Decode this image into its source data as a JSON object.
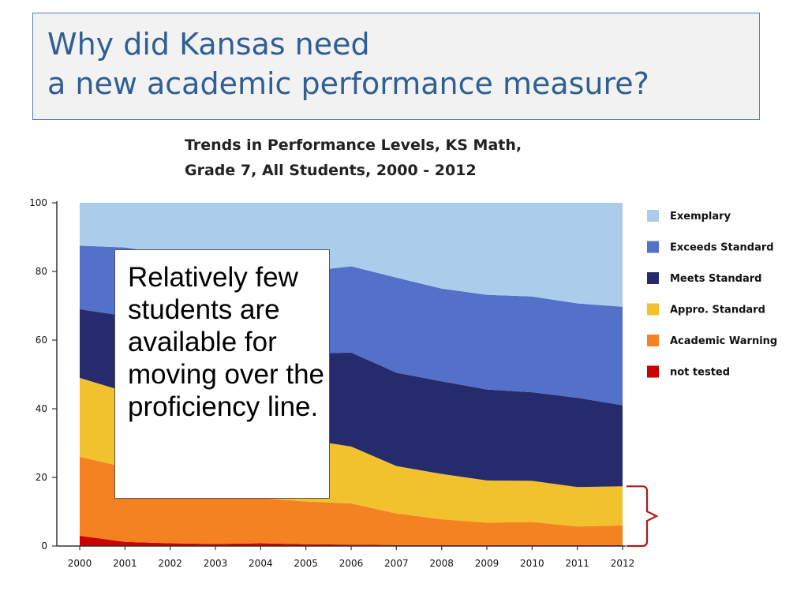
{
  "slide": {
    "title_line1": "Why did Kansas need",
    "title_line2": "a new academic performance measure?",
    "callout_text": "Relatively few students are available for moving over the proficiency line."
  },
  "chart_data": {
    "type": "area",
    "title_line1": "Trends in Performance Levels, KS Math,",
    "title_line2": "Grade 7, All Students, 2000 - 2012",
    "x": [
      2000,
      2001,
      2002,
      2003,
      2004,
      2005,
      2006,
      2007,
      2008,
      2009,
      2010,
      2011,
      2012
    ],
    "ylim": [
      0,
      100
    ],
    "yticks": [
      0,
      20,
      40,
      60,
      80,
      100
    ],
    "stacking": "cumulative",
    "series": [
      {
        "name": "not tested",
        "color": "#cc0000",
        "values": [
          3,
          1.2,
          0.8,
          0.6,
          0.8,
          0.5,
          0.4,
          0.3,
          0.3,
          0.3,
          0.3,
          0.3,
          0.3
        ]
      },
      {
        "name": "Academic Warning",
        "color": "#f58220",
        "values": [
          23,
          21.8,
          18.2,
          16.4,
          13.2,
          12.5,
          12,
          9.2,
          7.5,
          6.5,
          6.7,
          5.4,
          5.7
        ]
      },
      {
        "name": "Appro. Standard",
        "color": "#f2c12e",
        "values": [
          23,
          22,
          21,
          20,
          19,
          18,
          16.6,
          13.8,
          13.2,
          12.3,
          12,
          11.5,
          11.4
        ]
      },
      {
        "name": "Meets Standard",
        "color": "#262b6e",
        "values": [
          20,
          22,
          24,
          25,
          26,
          25,
          27.4,
          27.2,
          27,
          26.5,
          25.8,
          26,
          23.6
        ]
      },
      {
        "name": "Exceeds Standard",
        "color": "#5470c8",
        "values": [
          18.5,
          20,
          21,
          22,
          23,
          24,
          25.1,
          27.7,
          27,
          27.6,
          27.9,
          27.5,
          28.7
        ]
      },
      {
        "name": "Exemplary",
        "color": "#abcdeb",
        "values": [
          12.5,
          13,
          15,
          16,
          18,
          20,
          18.5,
          21.8,
          25,
          26.8,
          27.3,
          29.3,
          30.3
        ]
      }
    ],
    "legend_order": [
      "Exemplary",
      "Exceeds Standard",
      "Meets Standard",
      "Appro. Standard",
      "Academic Warning",
      "not tested"
    ],
    "legend_position": "right",
    "annotation": {
      "type": "bracket",
      "at_x": 2012,
      "from": 0,
      "to": 17.4,
      "color": "#b01818"
    }
  }
}
